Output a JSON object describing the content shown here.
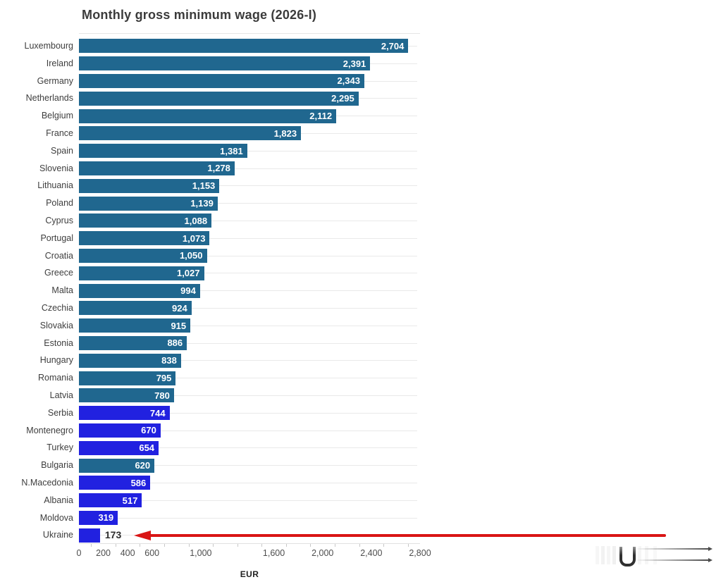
{
  "header": {
    "title": "Monthly gross minimum wage (2026-I)"
  },
  "palette": {
    "eu_bar": "#20678f",
    "noneu_bar": "#2121e0",
    "arrow_red": "#d91515",
    "value_text_inside": "#ffffff",
    "value_text_outside": "#2d2d2d"
  },
  "axis": {
    "label": "EUR",
    "max": 2800,
    "ticks": [
      {
        "value": 0,
        "label": "0"
      },
      {
        "value": 200,
        "label": "200"
      },
      {
        "value": 400,
        "label": "400"
      },
      {
        "value": 600,
        "label": "600"
      },
      {
        "value": 1000,
        "label": "1,000"
      },
      {
        "value": 1600,
        "label": "1,600"
      },
      {
        "value": 2000,
        "label": "2,000"
      },
      {
        "value": 2400,
        "label": "2,400"
      },
      {
        "value": 2800,
        "label": "2,800"
      }
    ],
    "minor_tick_start": 100,
    "minor_tick_step": 200
  },
  "chart_data": {
    "type": "bar",
    "orientation": "horizontal",
    "title": "Monthly gross minimum wage (2026-I)",
    "xlabel": "EUR",
    "ylabel": "",
    "xlim": [
      0,
      2800
    ],
    "grid": "row-guides",
    "categories": [
      "Luxembourg",
      "Ireland",
      "Germany",
      "Netherlands",
      "Belgium",
      "France",
      "Spain",
      "Slovenia",
      "Lithuania",
      "Poland",
      "Cyprus",
      "Portugal",
      "Croatia",
      "Greece",
      "Malta",
      "Czechia",
      "Slovakia",
      "Estonia",
      "Hungary",
      "Romania",
      "Latvia",
      "Serbia",
      "Montenegro",
      "Turkey",
      "Bulgaria",
      "N.Macedonia",
      "Albania",
      "Moldova",
      "Ukraine"
    ],
    "values": [
      2704,
      2391,
      2343,
      2295,
      2112,
      1823,
      1381,
      1278,
      1153,
      1139,
      1088,
      1073,
      1050,
      1027,
      994,
      924,
      915,
      886,
      838,
      795,
      780,
      744,
      670,
      654,
      620,
      586,
      517,
      319,
      173
    ],
    "items": [
      {
        "country": "Luxembourg",
        "value": 2704,
        "label": "2,704",
        "group": "eu"
      },
      {
        "country": "Ireland",
        "value": 2391,
        "label": "2,391",
        "group": "eu"
      },
      {
        "country": "Germany",
        "value": 2343,
        "label": "2,343",
        "group": "eu"
      },
      {
        "country": "Netherlands",
        "value": 2295,
        "label": "2,295",
        "group": "eu"
      },
      {
        "country": "Belgium",
        "value": 2112,
        "label": "2,112",
        "group": "eu"
      },
      {
        "country": "France",
        "value": 1823,
        "label": "1,823",
        "group": "eu"
      },
      {
        "country": "Spain",
        "value": 1381,
        "label": "1,381",
        "group": "eu"
      },
      {
        "country": "Slovenia",
        "value": 1278,
        "label": "1,278",
        "group": "eu"
      },
      {
        "country": "Lithuania",
        "value": 1153,
        "label": "1,153",
        "group": "eu"
      },
      {
        "country": "Poland",
        "value": 1139,
        "label": "1,139",
        "group": "eu"
      },
      {
        "country": "Cyprus",
        "value": 1088,
        "label": "1,088",
        "group": "eu"
      },
      {
        "country": "Portugal",
        "value": 1073,
        "label": "1,073",
        "group": "eu"
      },
      {
        "country": "Croatia",
        "value": 1050,
        "label": "1,050",
        "group": "eu"
      },
      {
        "country": "Greece",
        "value": 1027,
        "label": "1,027",
        "group": "eu"
      },
      {
        "country": "Malta",
        "value": 994,
        "label": "994",
        "group": "eu"
      },
      {
        "country": "Czechia",
        "value": 924,
        "label": "924",
        "group": "eu"
      },
      {
        "country": "Slovakia",
        "value": 915,
        "label": "915",
        "group": "eu"
      },
      {
        "country": "Estonia",
        "value": 886,
        "label": "886",
        "group": "eu"
      },
      {
        "country": "Hungary",
        "value": 838,
        "label": "838",
        "group": "eu"
      },
      {
        "country": "Romania",
        "value": 795,
        "label": "795",
        "group": "eu"
      },
      {
        "country": "Latvia",
        "value": 780,
        "label": "780",
        "group": "eu"
      },
      {
        "country": "Serbia",
        "value": 744,
        "label": "744",
        "group": "noneu"
      },
      {
        "country": "Montenegro",
        "value": 670,
        "label": "670",
        "group": "noneu"
      },
      {
        "country": "Turkey",
        "value": 654,
        "label": "654",
        "group": "noneu"
      },
      {
        "country": "Bulgaria",
        "value": 620,
        "label": "620",
        "group": "eu"
      },
      {
        "country": "N.Macedonia",
        "value": 586,
        "label": "586",
        "group": "noneu"
      },
      {
        "country": "Albania",
        "value": 517,
        "label": "517",
        "group": "noneu"
      },
      {
        "country": "Moldova",
        "value": 319,
        "label": "319",
        "group": "noneu"
      },
      {
        "country": "Ukraine",
        "value": 173,
        "label": "173",
        "group": "noneu",
        "value_outside": true,
        "arrow": true
      }
    ]
  },
  "annotations": {
    "red_arrow": {
      "points_at": "Ukraine",
      "direction": "left"
    }
  }
}
